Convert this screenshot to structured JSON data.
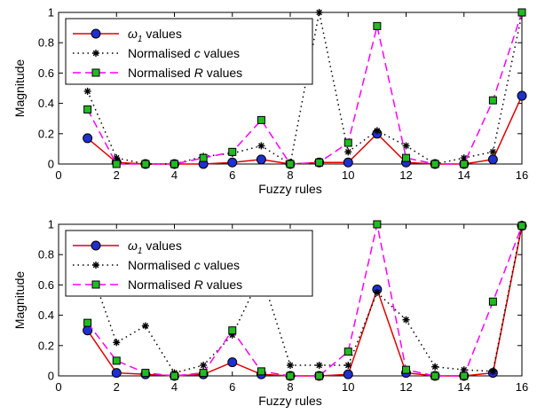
{
  "chart_data": [
    {
      "type": "line",
      "xlabel": "Fuzzy rules",
      "ylabel": "Magnitude",
      "xlim": [
        0,
        16
      ],
      "ylim": [
        0,
        1
      ],
      "xticks": [
        0,
        2,
        4,
        6,
        8,
        10,
        12,
        14,
        16
      ],
      "yticks": [
        0,
        0.2,
        0.4,
        0.6,
        0.8,
        1
      ],
      "xtick_labels": [
        "0",
        "2",
        "4",
        "6",
        "8",
        "10",
        "12",
        "14",
        "16"
      ],
      "ytick_labels": [
        "0",
        "0.2",
        "0.4",
        "0.6",
        "0.8",
        "1"
      ],
      "grid": false,
      "legend_position": "top-left",
      "x": [
        1,
        2,
        3,
        4,
        5,
        6,
        7,
        8,
        9,
        10,
        11,
        12,
        13,
        14,
        15,
        16
      ],
      "series": [
        {
          "legend": {
            "symbol": "ω",
            "sub": "1",
            "suffix": " values"
          },
          "style": "solid",
          "color": "#e00000",
          "marker": "circle",
          "marker_fill": "#1f2fd0",
          "values": [
            0.17,
            0.01,
            0.0,
            0.0,
            0.0,
            0.01,
            0.03,
            0.0,
            0.01,
            0.01,
            0.2,
            0.01,
            0.0,
            0.0,
            0.03,
            0.45
          ]
        },
        {
          "legend": {
            "prefix": "Normalised ",
            "symbol": "c",
            "suffix": " values"
          },
          "style": "dotted",
          "color": "#000000",
          "marker": "asterisk",
          "values": [
            0.48,
            0.04,
            0.0,
            0.0,
            0.05,
            0.07,
            0.12,
            0.0,
            1.0,
            0.08,
            0.22,
            0.12,
            0.0,
            0.04,
            0.08,
            0.99
          ]
        },
        {
          "legend": {
            "prefix": "Normalised ",
            "symbol": "R",
            "suffix": " values"
          },
          "style": "dashed",
          "color": "#ff00ff",
          "marker": "square",
          "marker_fill": "#22bb22",
          "values": [
            0.36,
            0.0,
            0.0,
            0.0,
            0.04,
            0.08,
            0.29,
            0.0,
            0.01,
            0.14,
            0.91,
            0.04,
            0.0,
            0.0,
            0.42,
            1.0
          ]
        }
      ]
    },
    {
      "type": "line",
      "xlabel": "Fuzzy rules",
      "ylabel": "Magnitude",
      "xlim": [
        0,
        16
      ],
      "ylim": [
        0,
        1
      ],
      "xticks": [
        0,
        2,
        4,
        6,
        8,
        10,
        12,
        14,
        16
      ],
      "yticks": [
        0,
        0.2,
        0.4,
        0.6,
        0.8,
        1
      ],
      "xtick_labels": [
        "0",
        "2",
        "4",
        "6",
        "8",
        "10",
        "12",
        "14",
        "16"
      ],
      "ytick_labels": [
        "0",
        "0.2",
        "0.4",
        "0.6",
        "0.8",
        "1"
      ],
      "grid": false,
      "legend_position": "top-left",
      "x": [
        1,
        2,
        3,
        4,
        5,
        6,
        7,
        8,
        9,
        10,
        11,
        12,
        13,
        14,
        15,
        16
      ],
      "series": [
        {
          "legend": {
            "symbol": "ω",
            "sub": "1",
            "suffix": " values"
          },
          "style": "solid",
          "color": "#e00000",
          "marker": "circle",
          "marker_fill": "#1f2fd0",
          "values": [
            0.3,
            0.02,
            0.01,
            0.0,
            0.01,
            0.09,
            0.01,
            0.0,
            0.0,
            0.01,
            0.57,
            0.02,
            0.0,
            0.0,
            0.02,
            0.99
          ]
        },
        {
          "legend": {
            "prefix": "Normalised ",
            "symbol": "c",
            "suffix": " values"
          },
          "style": "dotted",
          "color": "#000000",
          "marker": "asterisk",
          "values": [
            0.76,
            0.22,
            0.33,
            0.02,
            0.07,
            0.27,
            0.67,
            0.07,
            0.07,
            0.07,
            0.55,
            0.37,
            0.06,
            0.04,
            0.03,
            1.0
          ]
        },
        {
          "legend": {
            "prefix": "Normalised ",
            "symbol": "R",
            "suffix": " values"
          },
          "style": "dashed",
          "color": "#ff00ff",
          "marker": "square",
          "marker_fill": "#22bb22",
          "values": [
            0.35,
            0.1,
            0.02,
            0.0,
            0.02,
            0.3,
            0.03,
            0.0,
            0.0,
            0.16,
            1.0,
            0.04,
            0.0,
            0.0,
            0.49,
            0.99
          ]
        }
      ]
    }
  ]
}
